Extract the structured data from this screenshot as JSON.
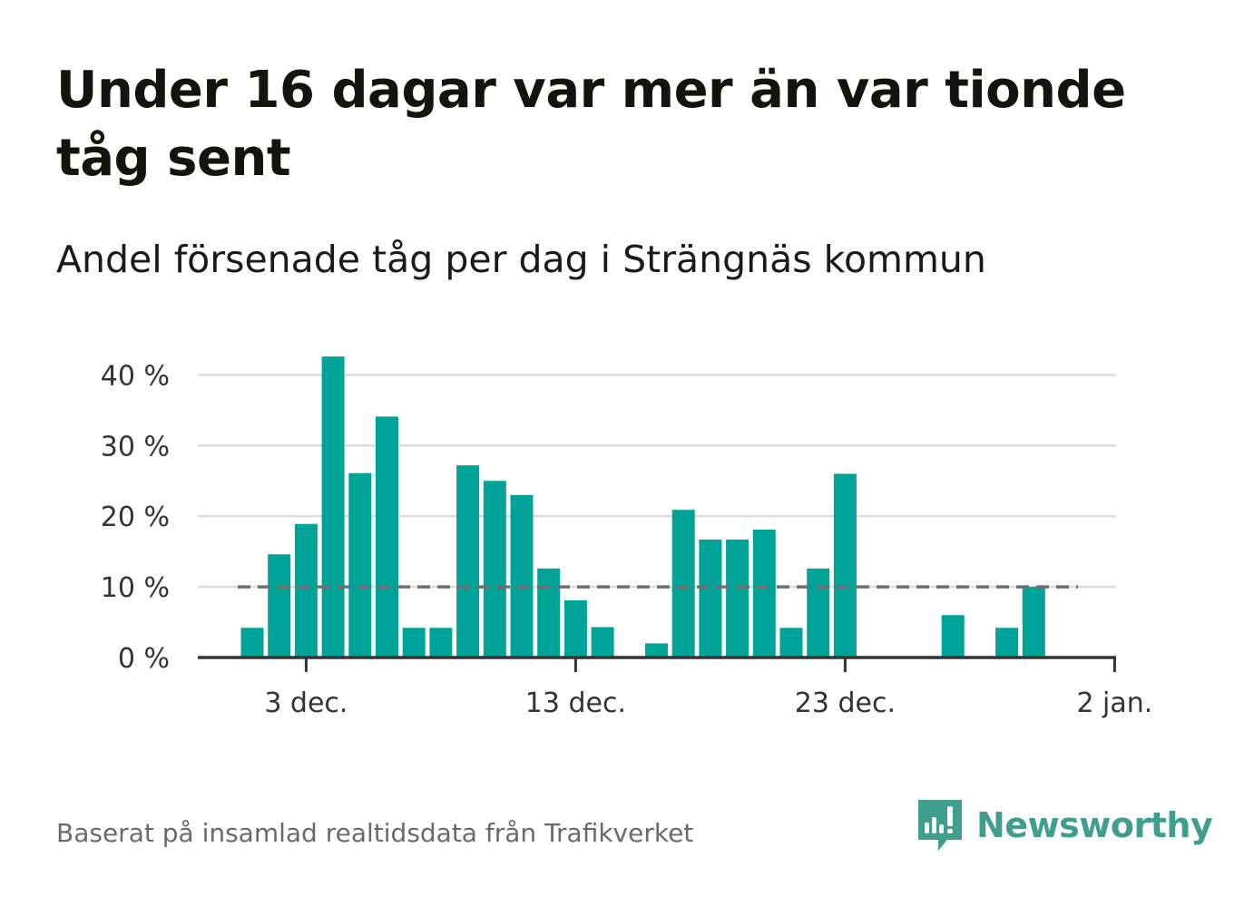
{
  "title": "Under 16 dagar var mer än var tionde tåg sent",
  "subtitle": "Andel försenade tåg per dag i Strängnäs kommun",
  "source": "Baserat på insamlad realtidsdata från Trafikverket",
  "brand": {
    "name": "Newsworthy",
    "icon": "newsworthy-logo-icon",
    "color": "#3f9e8e"
  },
  "chart_data": {
    "type": "bar",
    "title": "",
    "xlabel": "",
    "ylabel": "",
    "ylim": [
      0,
      43
    ],
    "grid": true,
    "bar_color": "#00a398",
    "reference_line": {
      "value": 10,
      "style": "dashed",
      "color": "#6e6e74"
    },
    "x_ticks": [
      {
        "day": 3,
        "label": "3 dec."
      },
      {
        "day": 13,
        "label": "13 dec."
      },
      {
        "day": 23,
        "label": "23 dec."
      },
      {
        "day": 33,
        "label": "2 jan."
      }
    ],
    "y_ticks": [
      {
        "value": 0,
        "label": "0 %"
      },
      {
        "value": 10,
        "label": "10 %"
      },
      {
        "value": 20,
        "label": "20 %"
      },
      {
        "value": 30,
        "label": "30 %"
      },
      {
        "value": 40,
        "label": "40 %"
      }
    ],
    "categories": [
      "1 dec.",
      "2 dec.",
      "3 dec.",
      "4 dec.",
      "5 dec.",
      "6 dec.",
      "7 dec.",
      "8 dec.",
      "9 dec.",
      "10 dec.",
      "11 dec.",
      "12 dec.",
      "13 dec.",
      "14 dec.",
      "15 dec.",
      "16 dec.",
      "17 dec.",
      "18 dec.",
      "19 dec.",
      "20 dec.",
      "21 dec.",
      "22 dec.",
      "23 dec.",
      "24 dec.",
      "25 dec.",
      "26 dec.",
      "27 dec.",
      "28 dec.",
      "29 dec.",
      "30 dec.",
      "31 dec."
    ],
    "values": [
      4.2,
      14.6,
      18.9,
      42.6,
      26.1,
      34.1,
      4.2,
      4.2,
      27.2,
      25.0,
      23.0,
      12.6,
      8.1,
      4.3,
      0,
      2.0,
      20.9,
      16.7,
      16.7,
      18.1,
      4.2,
      12.6,
      26.0,
      0,
      0,
      0,
      6.0,
      0,
      4.2,
      10.0,
      0
    ]
  }
}
